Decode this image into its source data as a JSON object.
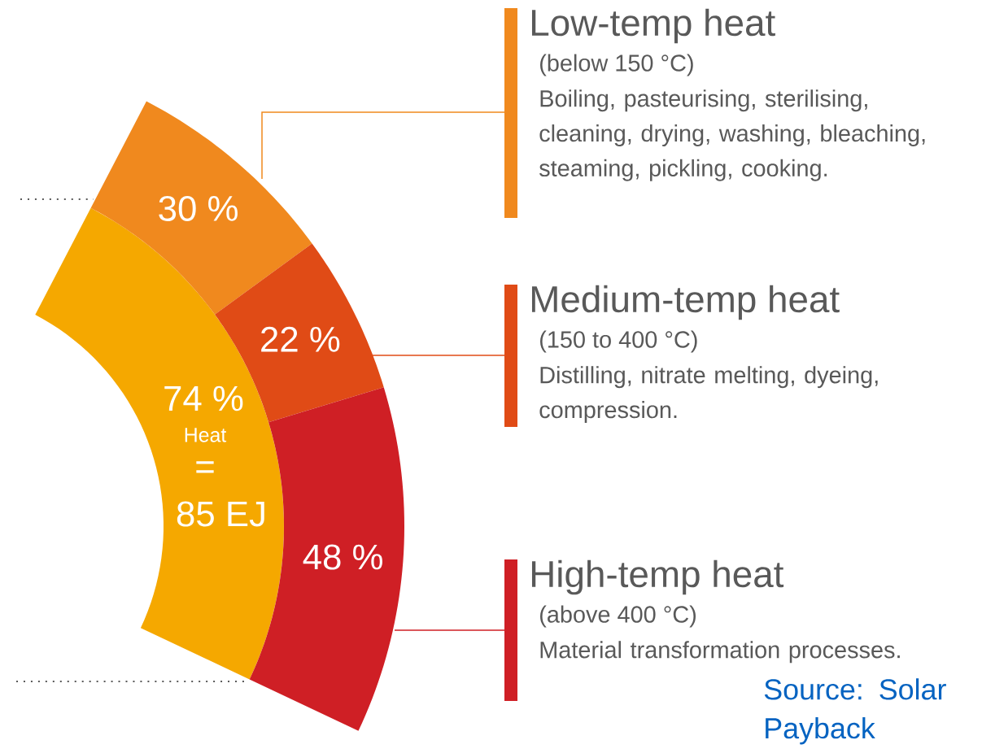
{
  "chart_data": {
    "type": "donut",
    "categories": [
      "Low-temp heat",
      "Medium-temp heat",
      "High-temp heat"
    ],
    "values": [
      30,
      22,
      48
    ],
    "value_labels": [
      "30 %",
      "22 %",
      "48 %"
    ],
    "colors": [
      "#f0891e",
      "#e04b16",
      "#cf1f25"
    ],
    "legend": "right",
    "annotations": [
      "74 %",
      "Heat",
      "=",
      "85 EJ",
      "(below 150 °C)",
      "Boiling, pasteurising, sterilising, cleaning, drying, washing, bleaching, steaming, pickling, cooking.",
      "(150 to 400 °C)",
      "Distilling, nitrate melting, dyeing, compression.",
      "(above 400 °C)",
      "Material transformation processes.",
      "Source: Solar Payback"
    ]
  }
}
